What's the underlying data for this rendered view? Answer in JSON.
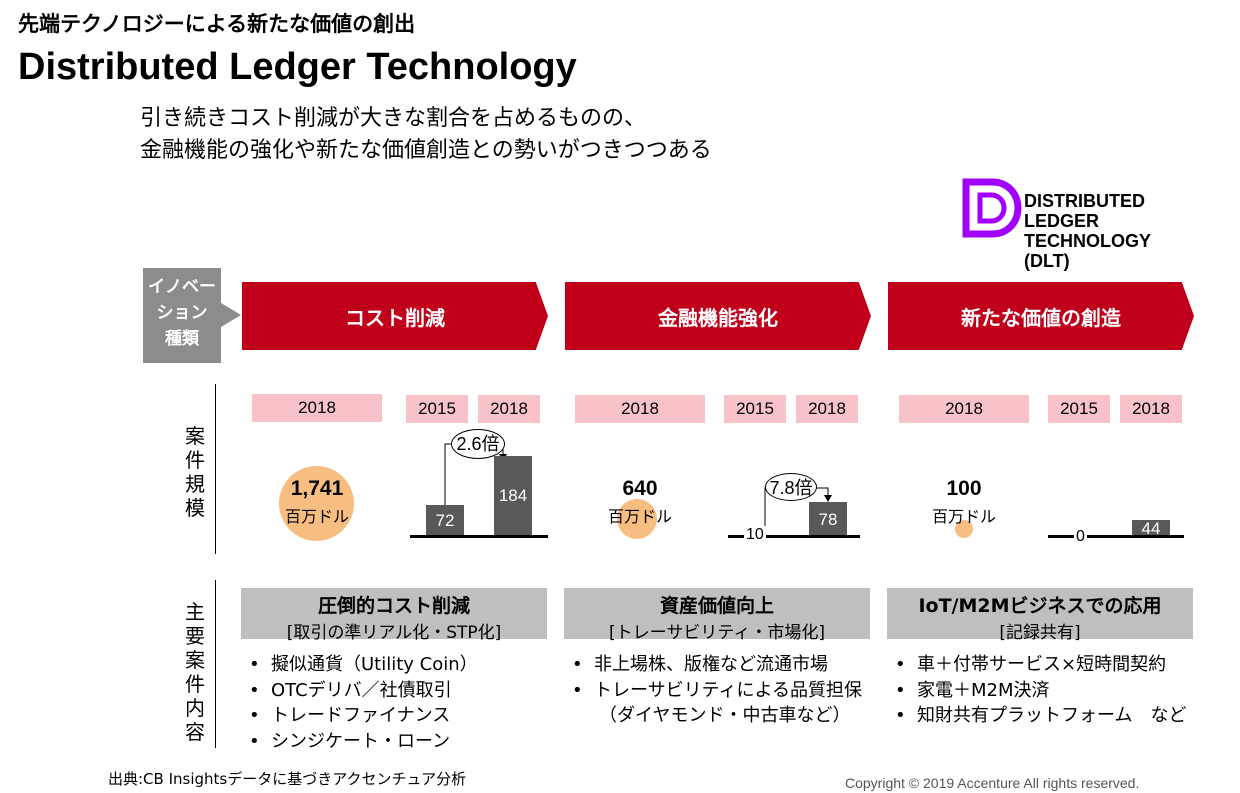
{
  "header": {
    "top_title": "先端テクノロジーによる新たな価値の創出",
    "main_title": "Distributed Ledger Technology",
    "subtitle_line1": "引き続きコスト削減が大きな割合を占めるものの、",
    "subtitle_line2": "金融機能の強化や新たな価値創造との勢いがつきつつある"
  },
  "logo": {
    "line1": "DISTRIBUTED",
    "line2": "LEDGER",
    "line3": "TECHNOLOGY",
    "line4": "(DLT)",
    "color": "#a100ff"
  },
  "innovation_label": [
    "イノベー",
    "ション",
    "種類"
  ],
  "categories": [
    {
      "title": "コスト削減",
      "single_year": "2018",
      "value": "1,741",
      "unit": "百万ドル",
      "year_a": "2015",
      "year_b": "2018",
      "val_a": "72",
      "val_b": "184",
      "ratio": "2.6倍",
      "box_title": "圧倒的コスト削減",
      "box_sub": "[取引の準リアル化・STP化]",
      "bullets": [
        "擬似通貨（Utility Coin）",
        "OTCデリバ／社債取引",
        "トレードファイナンス",
        "シンジケート・ローン"
      ]
    },
    {
      "title": "金融機能強化",
      "single_year": "2018",
      "value": "640",
      "unit": "百万ドル",
      "year_a": "2015",
      "year_b": "2018",
      "val_a": "10",
      "val_b": "78",
      "ratio": "7.8倍",
      "box_title": "資産価値向上",
      "box_sub": "[トレーサビリティ・市場化]",
      "bullets": [
        "非上場株、版権など流通市場",
        "トレーサビリティによる品質担保"
      ],
      "bullet_cont": "（ダイヤモンド・中古車など）"
    },
    {
      "title": "新たな価値の創造",
      "single_year": "2018",
      "value": "100",
      "unit": "百万ドル",
      "year_a": "2015",
      "year_b": "2018",
      "val_a": "0",
      "val_b": "44",
      "box_title": "IoT/M2Mビジネスでの応用",
      "box_sub": "[記録共有]",
      "bullets": [
        "車＋付帯サービス×短時間契約",
        "家電＋M2M決済",
        "知財共有プラットフォーム　など"
      ]
    }
  ],
  "row_labels": {
    "scale": "案件規模",
    "content": "主要案件内容"
  },
  "footer": {
    "source": "出典:CB Insightsデータに基づきアクセンチュア分析",
    "copyright": "Copyright © 2019 Accenture  All rights reserved."
  },
  "colors": {
    "accent_red": "#c0001a",
    "pill_pink": "#f7c3c9",
    "circle_orange": "#f8bd80",
    "bar_gray": "#595959"
  }
}
